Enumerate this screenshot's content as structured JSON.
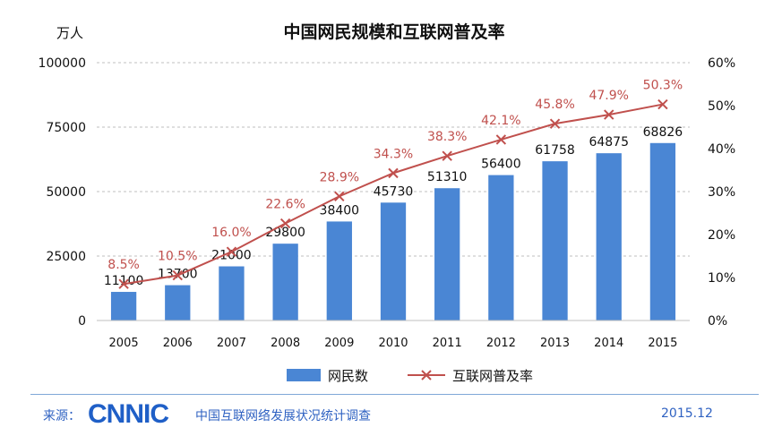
{
  "chart_data": {
    "type": "bar",
    "title": "中国网民规模和互联网普及率",
    "left_unit": "万人",
    "categories": [
      "2005",
      "2006",
      "2007",
      "2008",
      "2009",
      "2010",
      "2011",
      "2012",
      "2013",
      "2014",
      "2015"
    ],
    "series": [
      {
        "name": "网民数",
        "type": "bar",
        "axis": "left",
        "color": "#4a86d4",
        "values": [
          11100,
          13700,
          21000,
          29800,
          38400,
          45730,
          51310,
          56400,
          61758,
          64875,
          68826
        ],
        "labels": [
          "11100",
          "13700",
          "21000",
          "29800",
          "38400",
          "45730",
          "51310",
          "56400",
          "61758",
          "64875",
          "68826"
        ]
      },
      {
        "name": "互联网普及率",
        "type": "line",
        "axis": "right",
        "color": "#c0504d",
        "values": [
          8.5,
          10.5,
          16.0,
          22.6,
          28.9,
          34.3,
          38.3,
          42.1,
          45.8,
          47.9,
          50.3
        ],
        "labels": [
          "8.5%",
          "10.5%",
          "16.0%",
          "22.6%",
          "28.9%",
          "34.3%",
          "38.3%",
          "42.1%",
          "45.8%",
          "47.9%",
          "50.3%"
        ]
      }
    ],
    "y_left": {
      "min": 0,
      "max": 100000,
      "ticks": [
        0,
        25000,
        50000,
        75000,
        100000
      ],
      "tick_labels": [
        "0",
        "25000",
        "50000",
        "75000",
        "100000"
      ]
    },
    "y_right": {
      "min": 0,
      "max": 60,
      "ticks": [
        0,
        10,
        20,
        30,
        40,
        50,
        60
      ],
      "tick_labels": [
        "0%",
        "10%",
        "20%",
        "30%",
        "40%",
        "50%",
        "60%"
      ]
    },
    "grid": true,
    "legend_position": "bottom"
  },
  "footer": {
    "source_label": "来源：",
    "logo_text": "CNNIC",
    "org": "中国互联网络发展状况统计调查",
    "date": "2015.12"
  }
}
